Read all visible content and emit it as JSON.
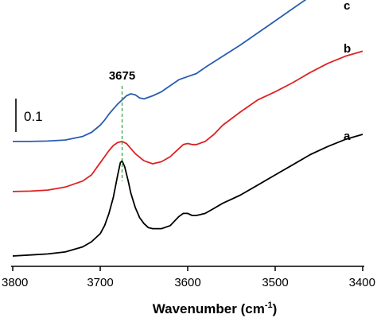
{
  "chart_data": {
    "type": "line",
    "xlabel": "Wavenumber (cm",
    "xlabel_sup": "-1",
    "xlabel_end": ")",
    "xlim": [
      3800,
      3400
    ],
    "x_ticks": [
      3800,
      3700,
      3600,
      3500,
      3400
    ],
    "x_tick_labels": [
      "3800",
      "3700",
      "3600",
      "3500",
      "3400"
    ],
    "grid": false,
    "legend": "none",
    "scale_bar": {
      "label": "0.1",
      "value": 0.1
    },
    "marker": {
      "label": "3675",
      "x": 3675
    },
    "series": [
      {
        "name": "a",
        "color": "#000000",
        "x": [
          3800,
          3780,
          3760,
          3740,
          3720,
          3710,
          3700,
          3695,
          3690,
          3685,
          3680,
          3677,
          3675,
          3672,
          3668,
          3665,
          3660,
          3655,
          3650,
          3645,
          3640,
          3630,
          3620,
          3610,
          3605,
          3600,
          3595,
          3590,
          3585,
          3580,
          3570,
          3560,
          3540,
          3520,
          3500,
          3480,
          3460,
          3440,
          3420,
          3400
        ],
        "y": [
          0.0,
          0.005,
          0.01,
          0.02,
          0.045,
          0.07,
          0.11,
          0.15,
          0.21,
          0.29,
          0.4,
          0.46,
          0.47,
          0.44,
          0.37,
          0.31,
          0.24,
          0.19,
          0.16,
          0.14,
          0.135,
          0.135,
          0.15,
          0.195,
          0.21,
          0.21,
          0.2,
          0.2,
          0.205,
          0.21,
          0.235,
          0.26,
          0.3,
          0.35,
          0.4,
          0.45,
          0.5,
          0.54,
          0.575,
          0.6
        ]
      },
      {
        "name": "b",
        "color": "#dd2222",
        "x": [
          3800,
          3780,
          3760,
          3740,
          3720,
          3710,
          3700,
          3695,
          3690,
          3685,
          3680,
          3675,
          3670,
          3665,
          3660,
          3650,
          3640,
          3630,
          3620,
          3610,
          3605,
          3600,
          3595,
          3590,
          3580,
          3570,
          3560,
          3540,
          3520,
          3500,
          3480,
          3460,
          3440,
          3420,
          3400
        ],
        "y": [
          0.318,
          0.32,
          0.325,
          0.34,
          0.37,
          0.4,
          0.46,
          0.49,
          0.52,
          0.545,
          0.56,
          0.565,
          0.555,
          0.53,
          0.505,
          0.47,
          0.455,
          0.465,
          0.49,
          0.53,
          0.55,
          0.555,
          0.55,
          0.55,
          0.565,
          0.6,
          0.645,
          0.71,
          0.77,
          0.81,
          0.855,
          0.905,
          0.95,
          0.985,
          1.01
        ]
      },
      {
        "name": "c",
        "color": "#2a5db0",
        "x": [
          3800,
          3780,
          3760,
          3740,
          3720,
          3710,
          3700,
          3695,
          3690,
          3685,
          3680,
          3675,
          3670,
          3665,
          3660,
          3655,
          3650,
          3640,
          3630,
          3620,
          3610,
          3600,
          3590,
          3580,
          3560,
          3540,
          3520,
          3500,
          3480,
          3460,
          3440,
          3420,
          3400
        ],
        "y": [
          0.565,
          0.565,
          0.567,
          0.572,
          0.59,
          0.61,
          0.645,
          0.67,
          0.7,
          0.725,
          0.75,
          0.77,
          0.79,
          0.8,
          0.795,
          0.78,
          0.775,
          0.79,
          0.81,
          0.84,
          0.87,
          0.885,
          0.9,
          0.93,
          0.985,
          1.04,
          1.1,
          1.16,
          1.22,
          1.28,
          1.33,
          1.37,
          1.4
        ]
      }
    ]
  }
}
